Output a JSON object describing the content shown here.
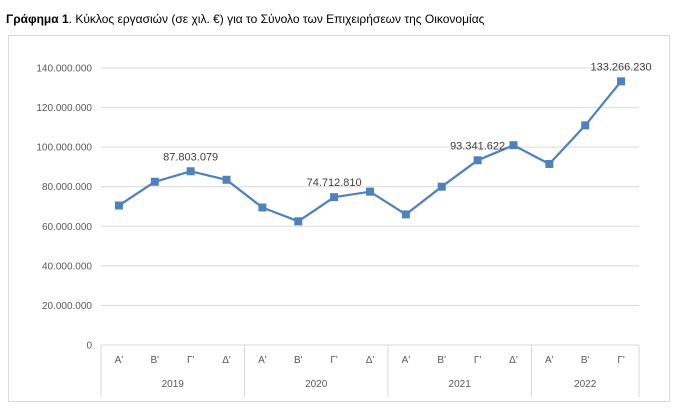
{
  "caption": {
    "label": "Γράφημα 1",
    "text": ". Κύκλος εργασιών (σε χιλ. €) για το Σύνολο των Επιχειρήσεων της Οικονομίας"
  },
  "chart_data": {
    "type": "line",
    "title": "",
    "xlabel": "",
    "ylabel": "",
    "ylim": [
      0,
      140000000
    ],
    "y_ticks": [
      0,
      20000000,
      40000000,
      60000000,
      80000000,
      100000000,
      120000000,
      140000000
    ],
    "y_tick_labels": [
      "0",
      "20.000.000",
      "40.000.000",
      "60.000.000",
      "80.000.000",
      "100.000.000",
      "120.000.000",
      "140.000.000"
    ],
    "grid": true,
    "legend": "none",
    "color": "#4f81bd",
    "groups": [
      {
        "year": "2019",
        "quarters": [
          "Α'",
          "Β'",
          "Γ'",
          "Δ'"
        ]
      },
      {
        "year": "2020",
        "quarters": [
          "Α'",
          "Β'",
          "Γ'",
          "Δ'"
        ]
      },
      {
        "year": "2021",
        "quarters": [
          "Α'",
          "Β'",
          "Γ'",
          "Δ'"
        ]
      },
      {
        "year": "2022",
        "quarters": [
          "Α'",
          "Β'",
          "Γ'"
        ]
      }
    ],
    "series": [
      {
        "values": [
          70500000,
          82500000,
          87803079,
          83500000,
          69500000,
          62500000,
          74712810,
          77500000,
          66000000,
          80000000,
          93341622,
          101000000,
          91500000,
          111000000,
          133266230
        ]
      }
    ],
    "data_labels": [
      {
        "index": 2,
        "text": "87.803.079"
      },
      {
        "index": 6,
        "text": "74.712.810"
      },
      {
        "index": 10,
        "text": "93.341.622"
      },
      {
        "index": 14,
        "text": "133.266.230"
      }
    ]
  }
}
